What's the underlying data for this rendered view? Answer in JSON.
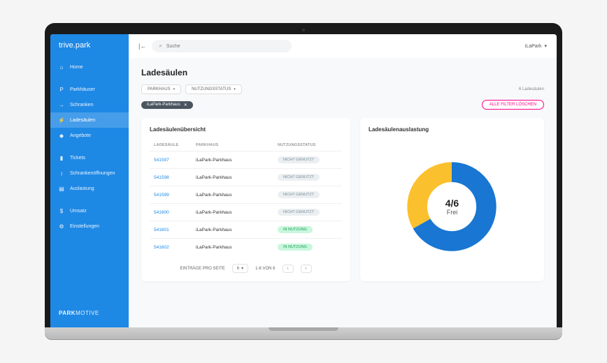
{
  "brand": "trive.park",
  "footer_brand_bold": "PARK",
  "footer_brand_light": "MOTIVE",
  "sidebar": {
    "items": [
      {
        "icon": "⌂",
        "label": "Home",
        "active": false
      },
      {
        "icon": "P",
        "label": "Parkhäuser",
        "active": false
      },
      {
        "icon": "→",
        "label": "Schranken",
        "active": false
      },
      {
        "icon": "⚡",
        "label": "Ladesäulen",
        "active": true
      },
      {
        "icon": "◆",
        "label": "Angebote",
        "active": false
      },
      {
        "icon": "▮",
        "label": "Tickets",
        "active": false
      },
      {
        "icon": "↕",
        "label": "Schrankenöffnungen",
        "active": false
      },
      {
        "icon": "▤",
        "label": "Auslastung",
        "active": false
      },
      {
        "icon": "$",
        "label": "Umsatz",
        "active": false
      },
      {
        "icon": "⚙",
        "label": "Einstellungen",
        "active": false
      }
    ]
  },
  "topbar": {
    "search_placeholder": "Suche",
    "tenant": "iLaPark"
  },
  "page": {
    "title": "Ladesäulen",
    "filter1": "PARKHAUS",
    "filter2": "NUTZUNGSSTATUS",
    "count_text": "6 Ladesäulen",
    "chip": "iLaPark-Parkhaus",
    "clear_filters": "ALLE FILTER LÖSCHEN"
  },
  "table": {
    "title": "Ladesäulenübersicht",
    "col1": "LADESÄULE",
    "col2": "PARKHAUS",
    "col3": "NUTZUNGSSTATUS",
    "status_idle": "NICHT GENUTZT",
    "status_use": "IN NUTZUNG",
    "rows": [
      {
        "id": "541597",
        "parkhaus": "iLaPark-Parkhaus",
        "status": "idle"
      },
      {
        "id": "541598",
        "parkhaus": "iLaPark-Parkhaus",
        "status": "idle"
      },
      {
        "id": "541599",
        "parkhaus": "iLaPark-Parkhaus",
        "status": "idle"
      },
      {
        "id": "541600",
        "parkhaus": "iLaPark-Parkhaus",
        "status": "idle"
      },
      {
        "id": "541601",
        "parkhaus": "iLaPark-Parkhaus",
        "status": "use"
      },
      {
        "id": "541602",
        "parkhaus": "iLaPark-Parkhaus",
        "status": "use"
      }
    ],
    "per_page_label": "EINTRÄGE PRO SEITE",
    "per_page_value": "6",
    "range_text": "1-6 VON 6"
  },
  "donut": {
    "title": "Ladesäulenauslastung",
    "center_num": "4/6",
    "center_label": "Frei",
    "free": 4,
    "total": 6,
    "color_free": "#1976d2",
    "color_used": "#fbc02d",
    "track_color": "#eceff1",
    "stroke_width": 22
  }
}
